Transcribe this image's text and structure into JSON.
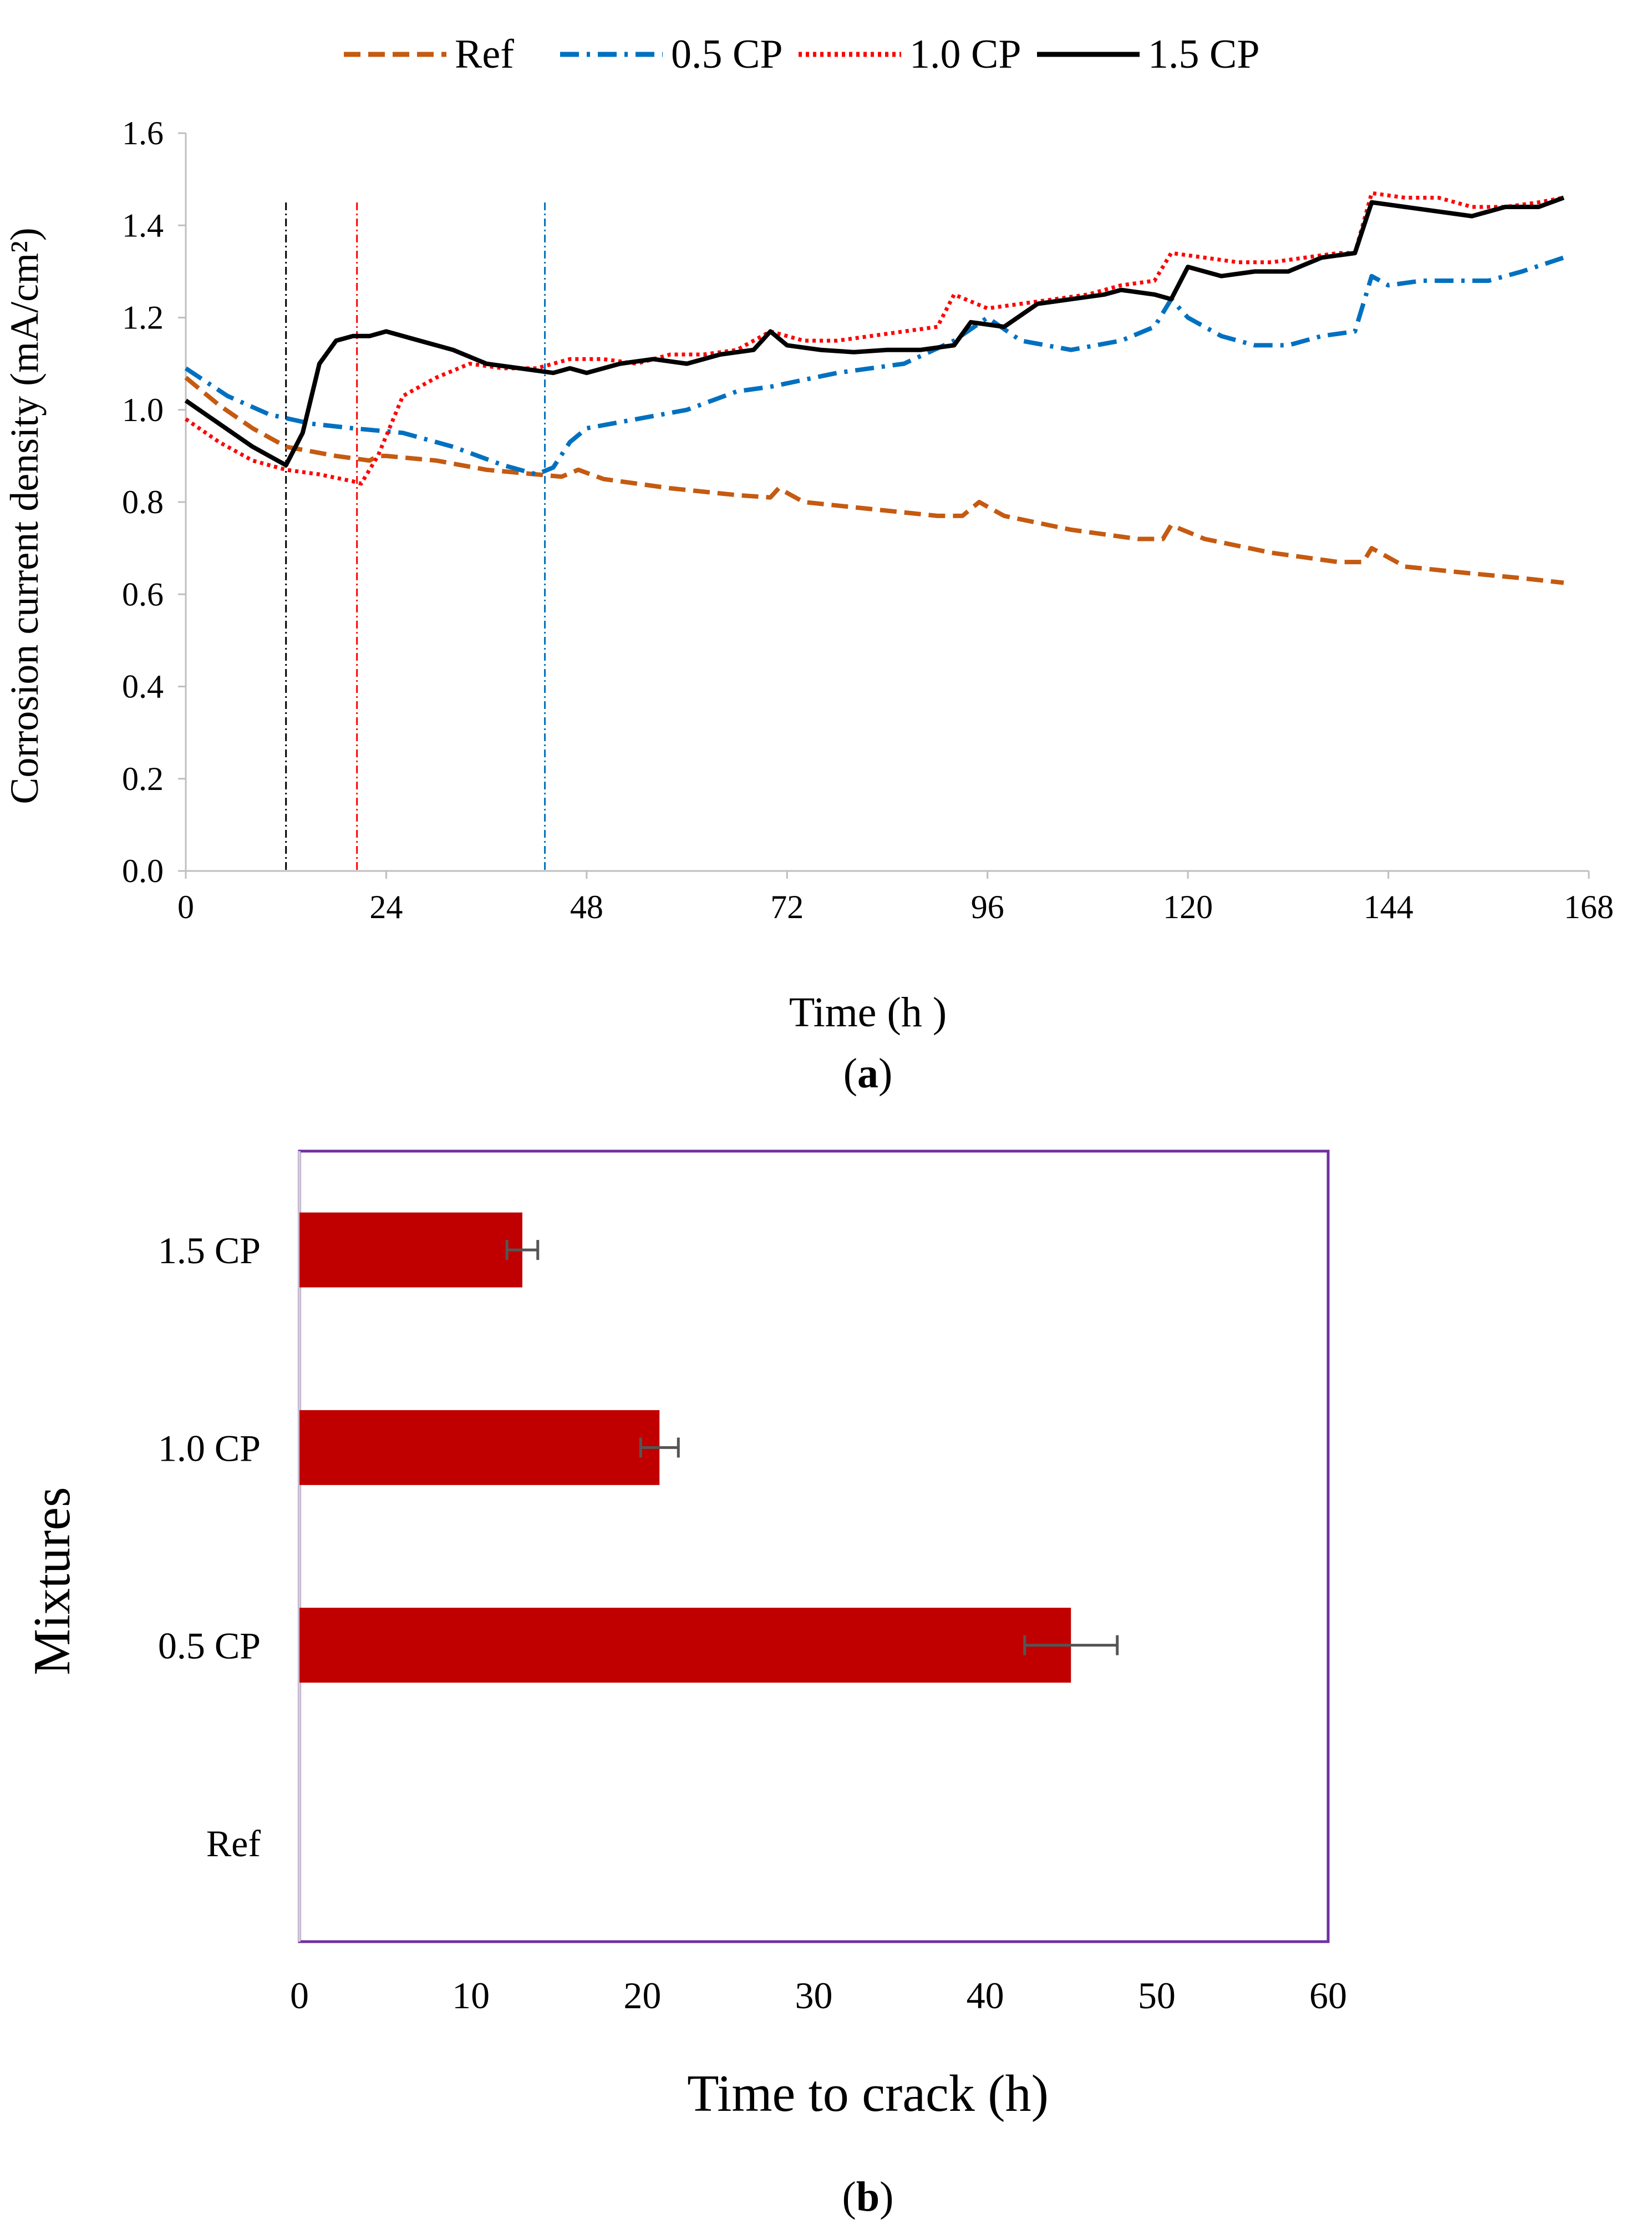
{
  "chart_data": [
    {
      "type": "line",
      "caption": "a",
      "xlabel": "Time (h )",
      "ylabel": "Corrosion current density (mA/cm²)",
      "xlim": [
        0,
        168
      ],
      "ylim": [
        0.0,
        1.6
      ],
      "x_ticks": [
        "0",
        "24",
        "48",
        "72",
        "96",
        "120",
        "144",
        "168"
      ],
      "y_ticks": [
        "0.0",
        "0.2",
        "0.4",
        "0.6",
        "0.8",
        "1.0",
        "1.2",
        "1.4",
        "1.6"
      ],
      "grid": false,
      "legend_position": "top",
      "series": [
        {
          "name": "Ref",
          "color": "#c55a11",
          "style": "dashed",
          "points": [
            [
              0,
              1.07
            ],
            [
              4,
              1.01
            ],
            [
              8,
              0.96
            ],
            [
              12,
              0.92
            ],
            [
              18,
              0.9
            ],
            [
              22,
              0.89
            ],
            [
              23,
              0.9
            ],
            [
              24,
              0.9
            ],
            [
              30,
              0.89
            ],
            [
              36,
              0.87
            ],
            [
              42,
              0.86
            ],
            [
              45,
              0.855
            ],
            [
              47,
              0.87
            ],
            [
              50,
              0.85
            ],
            [
              58,
              0.83
            ],
            [
              66,
              0.815
            ],
            [
              70,
              0.81
            ],
            [
              71,
              0.83
            ],
            [
              74,
              0.8
            ],
            [
              82,
              0.785
            ],
            [
              90,
              0.77
            ],
            [
              93,
              0.77
            ],
            [
              95,
              0.8
            ],
            [
              98,
              0.77
            ],
            [
              106,
              0.74
            ],
            [
              114,
              0.72
            ],
            [
              117,
              0.72
            ],
            [
              118,
              0.75
            ],
            [
              122,
              0.72
            ],
            [
              130,
              0.69
            ],
            [
              138,
              0.67
            ],
            [
              141,
              0.67
            ],
            [
              142,
              0.7
            ],
            [
              146,
              0.66
            ],
            [
              154,
              0.645
            ],
            [
              160,
              0.635
            ],
            [
              165,
              0.625
            ]
          ]
        },
        {
          "name": "0.5 CP",
          "color": "#0070c0",
          "style": "dashdot",
          "points": [
            [
              0,
              1.09
            ],
            [
              5,
              1.03
            ],
            [
              10,
              0.99
            ],
            [
              15,
              0.97
            ],
            [
              20,
              0.96
            ],
            [
              26,
              0.95
            ],
            [
              32,
              0.92
            ],
            [
              38,
              0.88
            ],
            [
              42,
              0.86
            ],
            [
              44,
              0.875
            ],
            [
              46,
              0.93
            ],
            [
              48,
              0.96
            ],
            [
              54,
              0.98
            ],
            [
              60,
              1.0
            ],
            [
              66,
              1.04
            ],
            [
              70,
              1.05
            ],
            [
              78,
              1.08
            ],
            [
              86,
              1.1
            ],
            [
              92,
              1.15
            ],
            [
              96,
              1.2
            ],
            [
              100,
              1.15
            ],
            [
              106,
              1.13
            ],
            [
              112,
              1.15
            ],
            [
              116,
              1.18
            ],
            [
              118,
              1.24
            ],
            [
              120,
              1.2
            ],
            [
              124,
              1.16
            ],
            [
              128,
              1.14
            ],
            [
              132,
              1.14
            ],
            [
              136,
              1.16
            ],
            [
              140,
              1.17
            ],
            [
              142,
              1.29
            ],
            [
              144,
              1.27
            ],
            [
              148,
              1.28
            ],
            [
              152,
              1.28
            ],
            [
              156,
              1.28
            ],
            [
              160,
              1.3
            ],
            [
              165,
              1.33
            ]
          ]
        },
        {
          "name": "1.0 CP",
          "color": "#ff0000",
          "style": "dotted",
          "points": [
            [
              0,
              0.98
            ],
            [
              4,
              0.93
            ],
            [
              8,
              0.89
            ],
            [
              12,
              0.87
            ],
            [
              16,
              0.86
            ],
            [
              20,
              0.845
            ],
            [
              21,
              0.84
            ],
            [
              23,
              0.9
            ],
            [
              26,
              1.03
            ],
            [
              30,
              1.07
            ],
            [
              34,
              1.1
            ],
            [
              38,
              1.09
            ],
            [
              42,
              1.09
            ],
            [
              46,
              1.11
            ],
            [
              50,
              1.11
            ],
            [
              54,
              1.1
            ],
            [
              58,
              1.12
            ],
            [
              62,
              1.12
            ],
            [
              66,
              1.13
            ],
            [
              70,
              1.17
            ],
            [
              74,
              1.15
            ],
            [
              78,
              1.15
            ],
            [
              82,
              1.16
            ],
            [
              86,
              1.17
            ],
            [
              90,
              1.18
            ],
            [
              92,
              1.25
            ],
            [
              96,
              1.22
            ],
            [
              100,
              1.23
            ],
            [
              104,
              1.24
            ],
            [
              108,
              1.25
            ],
            [
              112,
              1.27
            ],
            [
              116,
              1.28
            ],
            [
              118,
              1.34
            ],
            [
              122,
              1.33
            ],
            [
              126,
              1.32
            ],
            [
              130,
              1.32
            ],
            [
              134,
              1.33
            ],
            [
              138,
              1.34
            ],
            [
              140,
              1.34
            ],
            [
              142,
              1.47
            ],
            [
              146,
              1.46
            ],
            [
              150,
              1.46
            ],
            [
              154,
              1.44
            ],
            [
              158,
              1.44
            ],
            [
              162,
              1.45
            ],
            [
              165,
              1.46
            ]
          ]
        },
        {
          "name": "1.5 CP",
          "color": "#000000",
          "style": "solid",
          "points": [
            [
              0,
              1.02
            ],
            [
              4,
              0.97
            ],
            [
              8,
              0.92
            ],
            [
              11,
              0.89
            ],
            [
              12,
              0.88
            ],
            [
              14,
              0.95
            ],
            [
              16,
              1.1
            ],
            [
              18,
              1.15
            ],
            [
              20,
              1.16
            ],
            [
              22,
              1.16
            ],
            [
              24,
              1.17
            ],
            [
              28,
              1.15
            ],
            [
              32,
              1.13
            ],
            [
              36,
              1.1
            ],
            [
              40,
              1.09
            ],
            [
              44,
              1.08
            ],
            [
              46,
              1.09
            ],
            [
              48,
              1.08
            ],
            [
              52,
              1.1
            ],
            [
              56,
              1.11
            ],
            [
              60,
              1.1
            ],
            [
              64,
              1.12
            ],
            [
              68,
              1.13
            ],
            [
              70,
              1.17
            ],
            [
              72,
              1.14
            ],
            [
              76,
              1.13
            ],
            [
              80,
              1.125
            ],
            [
              84,
              1.13
            ],
            [
              88,
              1.13
            ],
            [
              92,
              1.14
            ],
            [
              94,
              1.19
            ],
            [
              98,
              1.18
            ],
            [
              102,
              1.23
            ],
            [
              106,
              1.24
            ],
            [
              110,
              1.25
            ],
            [
              112,
              1.26
            ],
            [
              116,
              1.25
            ],
            [
              118,
              1.24
            ],
            [
              120,
              1.31
            ],
            [
              124,
              1.29
            ],
            [
              128,
              1.3
            ],
            [
              132,
              1.3
            ],
            [
              136,
              1.33
            ],
            [
              140,
              1.34
            ],
            [
              142,
              1.45
            ],
            [
              146,
              1.44
            ],
            [
              150,
              1.43
            ],
            [
              154,
              1.42
            ],
            [
              158,
              1.44
            ],
            [
              162,
              1.44
            ],
            [
              165,
              1.46
            ]
          ]
        }
      ],
      "vertical_markers": [
        {
          "x": 12,
          "color": "#000000"
        },
        {
          "x": 20.5,
          "color": "#ff0000"
        },
        {
          "x": 43,
          "color": "#0070c0"
        }
      ]
    },
    {
      "type": "bar",
      "orientation": "horizontal",
      "caption": "b",
      "xlabel": "Time to crack (h)",
      "ylabel": "Mixtures",
      "xlim": [
        0,
        60
      ],
      "x_ticks": [
        "0",
        "10",
        "20",
        "30",
        "40",
        "50",
        "60"
      ],
      "categories": [
        "1.5 CP",
        "1.0 CP",
        "0.5 CP",
        "Ref"
      ],
      "values": [
        13,
        21,
        45,
        null
      ],
      "errors": [
        0.9,
        1.1,
        2.7,
        null
      ],
      "bar_color": "#c00000",
      "frame_color": "#7030a0"
    }
  ]
}
